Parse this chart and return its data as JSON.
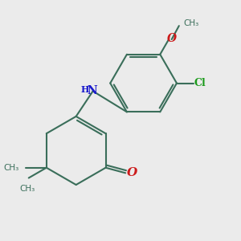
{
  "bg_color": "#ebebeb",
  "bond_color": "#3a6e5a",
  "bond_lw": 1.5,
  "N_color": "#1a1acc",
  "O_color": "#cc1a1a",
  "Cl_color": "#1a9a1a",
  "text_color": "#3a6e5a",
  "fig_size": [
    3.0,
    3.0
  ],
  "dpi": 100,
  "xlim": [
    0,
    10
  ],
  "ylim": [
    0,
    10
  ]
}
